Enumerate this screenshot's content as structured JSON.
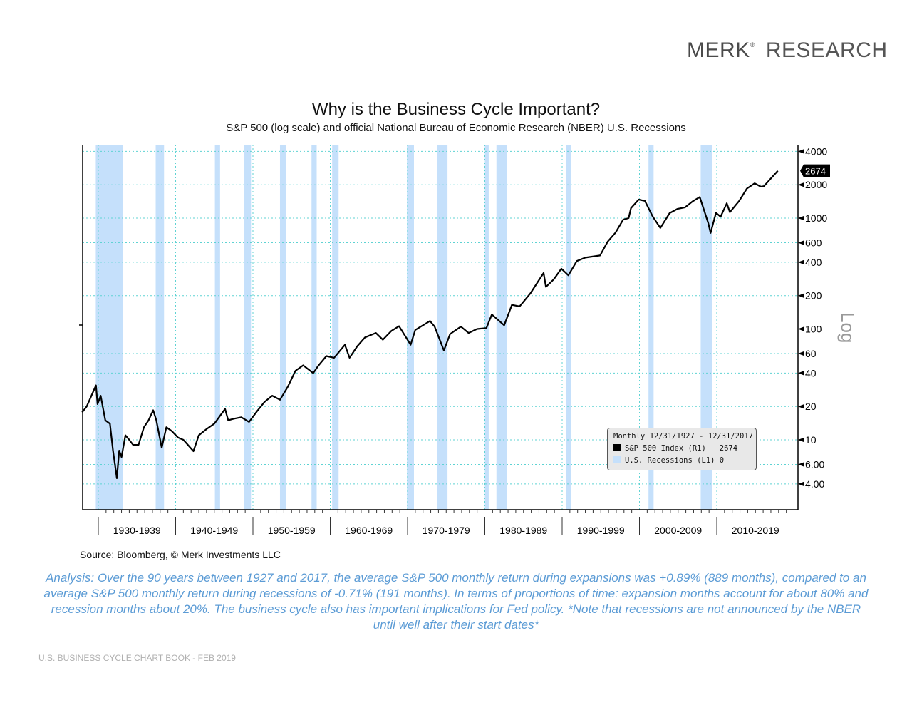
{
  "logo": {
    "brand": "MERK",
    "reg": "®",
    "division": "RESEARCH"
  },
  "colors": {
    "recession": "#c5e0fb",
    "line": "#000000",
    "grid": "#5fd3d3",
    "analysis": "#5b9bd5"
  },
  "chart_data": {
    "type": "line",
    "title": "Why is the Business Cycle Important?",
    "subtitle": "S&P 500 (log scale) and official National Bureau of Economic Research (NBER) U.S. Recessions",
    "y_scale": "log",
    "ylim": [
      2.5,
      5000
    ],
    "xlim": [
      1927.9,
      2021
    ],
    "y_tick_labels": [
      "4000",
      "2000",
      "1000",
      "600",
      "400",
      "200",
      "100",
      "60",
      "40",
      "20",
      "10",
      "6.00",
      "4.00"
    ],
    "y_ticks": [
      4000,
      2000,
      1000,
      600,
      400,
      200,
      100,
      60,
      40,
      20,
      10,
      6,
      4
    ],
    "y_axis_note": "Log",
    "x_tick_labels": [
      "1930-1939",
      "1940-1949",
      "1950-1959",
      "1960-1969",
      "1970-1979",
      "1980-1989",
      "1990-1999",
      "2000-2009",
      "2010-2019"
    ],
    "x_decade_starts": [
      1930,
      1940,
      1950,
      1960,
      1970,
      1980,
      1990,
      2000,
      2010,
      2020
    ],
    "grid": true,
    "last_value_label": "2674",
    "legend": {
      "placement": "bottom-right",
      "header": "Monthly 12/31/1927 - 12/31/2017",
      "items": [
        {
          "label": "S&P 500 Index (R1)",
          "value": "2674",
          "color": "#000000"
        },
        {
          "label": "U.S. Recessions (L1)",
          "value": "0",
          "color": "#c5e0fb"
        }
      ]
    },
    "recessions": [
      [
        1929.67,
        1933.17
      ],
      [
        1937.42,
        1938.5
      ],
      [
        1945.08,
        1945.75
      ],
      [
        1948.83,
        1949.75
      ],
      [
        1953.5,
        1954.33
      ],
      [
        1957.58,
        1958.25
      ],
      [
        1960.25,
        1961.08
      ],
      [
        1969.92,
        1970.83
      ],
      [
        1973.83,
        1975.17
      ],
      [
        1980.0,
        1980.5
      ],
      [
        1981.5,
        1982.83
      ],
      [
        1990.5,
        1991.17
      ],
      [
        2001.17,
        2001.83
      ],
      [
        2007.92,
        2009.42
      ]
    ],
    "series": [
      {
        "x": [
          1927.9,
          1928.5,
          1929.7,
          1929.9,
          1930.3,
          1930.9,
          1931.5,
          1931.9,
          1932.4,
          1932.7,
          1933.0,
          1933.5,
          1934,
          1934.5,
          1935.2,
          1935.9,
          1936.5,
          1937.1,
          1937.5,
          1938.2,
          1938.8,
          1939.5,
          1940.3,
          1941,
          1942.3,
          1943,
          1944,
          1945,
          1946.4,
          1946.8,
          1947.5,
          1948.5,
          1949.5,
          1950.5,
          1951.5,
          1952.5,
          1953.5,
          1954.5,
          1955.5,
          1956.5,
          1957.8,
          1958.5,
          1959.5,
          1960.5,
          1961.9,
          1962.5,
          1963.5,
          1964.5,
          1965.9,
          1966.8,
          1967.9,
          1968.9,
          1970.4,
          1971,
          1972.9,
          1973.5,
          1974.7,
          1975.5,
          1976.9,
          1977.9,
          1979,
          1980.2,
          1980.9,
          1982.5,
          1983.5,
          1984.5,
          1985.9,
          1987.6,
          1987.9,
          1988.9,
          1989.9,
          1990.8,
          1991.9,
          1993,
          1994.9,
          1995.9,
          1996.9,
          1997.9,
          1998.6,
          1998.9,
          1999.9,
          2000.7,
          2001.7,
          2002.7,
          2003.9,
          2004.9,
          2005.9,
          2006.9,
          2007.8,
          2008.9,
          2009.2,
          2009.9,
          2010.5,
          2011.3,
          2011.7,
          2012.9,
          2013.9,
          2014.9,
          2015.7,
          2016.1,
          2016.9,
          2017.9
        ],
        "values": [
          17.7,
          20,
          31,
          21,
          25,
          15,
          14,
          8,
          4.5,
          8,
          7,
          11,
          10,
          9,
          9,
          13,
          15,
          18.5,
          15,
          8.5,
          13,
          12,
          10.5,
          10,
          7.9,
          11,
          12.5,
          14,
          19,
          15,
          15.5,
          16,
          14.5,
          18,
          22,
          25,
          23,
          30,
          42,
          47,
          40,
          47,
          57,
          55,
          72,
          55,
          70,
          84,
          92,
          80,
          96,
          106,
          72,
          98,
          118,
          105,
          64,
          90,
          105,
          92,
          100,
          102,
          135,
          108,
          165,
          160,
          210,
          320,
          240,
          280,
          350,
          305,
          410,
          440,
          460,
          615,
          740,
          970,
          1000,
          1230,
          1470,
          1430,
          1040,
          815,
          1110,
          1210,
          1250,
          1420,
          1550,
          900,
          735,
          1115,
          1030,
          1360,
          1130,
          1430,
          1850,
          2060,
          1920,
          1940,
          2240,
          2674
        ]
      }
    ]
  },
  "source": "Source: Bloomberg, © Merk Investments LLC",
  "analysis": "Analysis: Over the 90 years between 1927 and 2017, the average S&P 500 monthly return during expansions was +0.89% (889 months), compared to an average S&P 500 monthly return during recessions of -0.71% (191 months). In terms of proportions of time: expansion months account for about 80% and recession months about 20%. The business cycle also has important implications for Fed policy. *Note that recessions are not announced by the NBER until well after their start dates*",
  "footer": "U.S. BUSINESS CYCLE CHART BOOK - FEB 2019"
}
